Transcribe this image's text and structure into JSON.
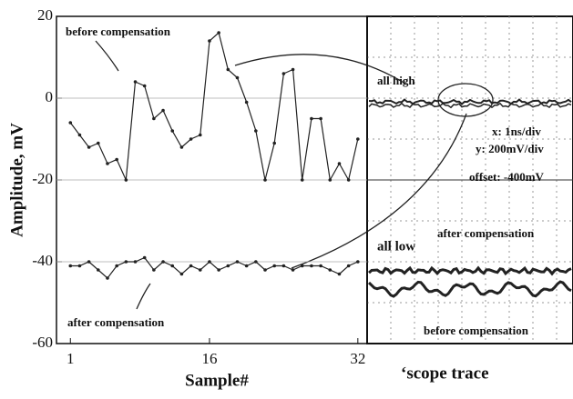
{
  "chart_data": {
    "type": "line",
    "ylabel": "Amplitude, mV",
    "xlabel": "Sample#",
    "x": [
      1,
      2,
      3,
      4,
      5,
      6,
      7,
      8,
      9,
      10,
      11,
      12,
      13,
      14,
      15,
      16,
      17,
      18,
      19,
      20,
      21,
      22,
      23,
      24,
      25,
      26,
      27,
      28,
      29,
      30,
      31,
      32
    ],
    "series": [
      {
        "name": "before compensation",
        "color": "#222222",
        "values": [
          -6,
          -9,
          -12,
          -11,
          -16,
          -15,
          -20,
          4,
          3,
          -5,
          -3,
          -8,
          -12,
          -10,
          -9,
          14,
          16,
          7,
          5,
          -1,
          -8,
          -20,
          -11,
          6,
          7,
          -20,
          -5,
          -5,
          -20,
          -16,
          -20,
          -10
        ]
      },
      {
        "name": "after compensation",
        "color": "#222222",
        "values": [
          -41,
          -41,
          -40,
          -42,
          -44,
          -41,
          -40,
          -40,
          -39,
          -42,
          -40,
          -41,
          -43,
          -41,
          -42,
          -40,
          -42,
          -41,
          -40,
          -41,
          -40,
          -42,
          -41,
          -41,
          -42,
          -41,
          -41,
          -41,
          -42,
          -43,
          -41,
          -40
        ]
      }
    ],
    "xlim": [
      -0.5,
      33
    ],
    "ylim": [
      -60,
      20
    ],
    "xticks": [
      1,
      16,
      32
    ],
    "yticks": [
      20,
      0,
      -20,
      -40,
      -60
    ],
    "grid": true,
    "annotations": [
      "all high",
      "x: 1ns/div",
      "y: 200mV/div",
      "offset: -400mV",
      "after compensation",
      "all low",
      "before compensation",
      "‘scope trace"
    ]
  }
}
